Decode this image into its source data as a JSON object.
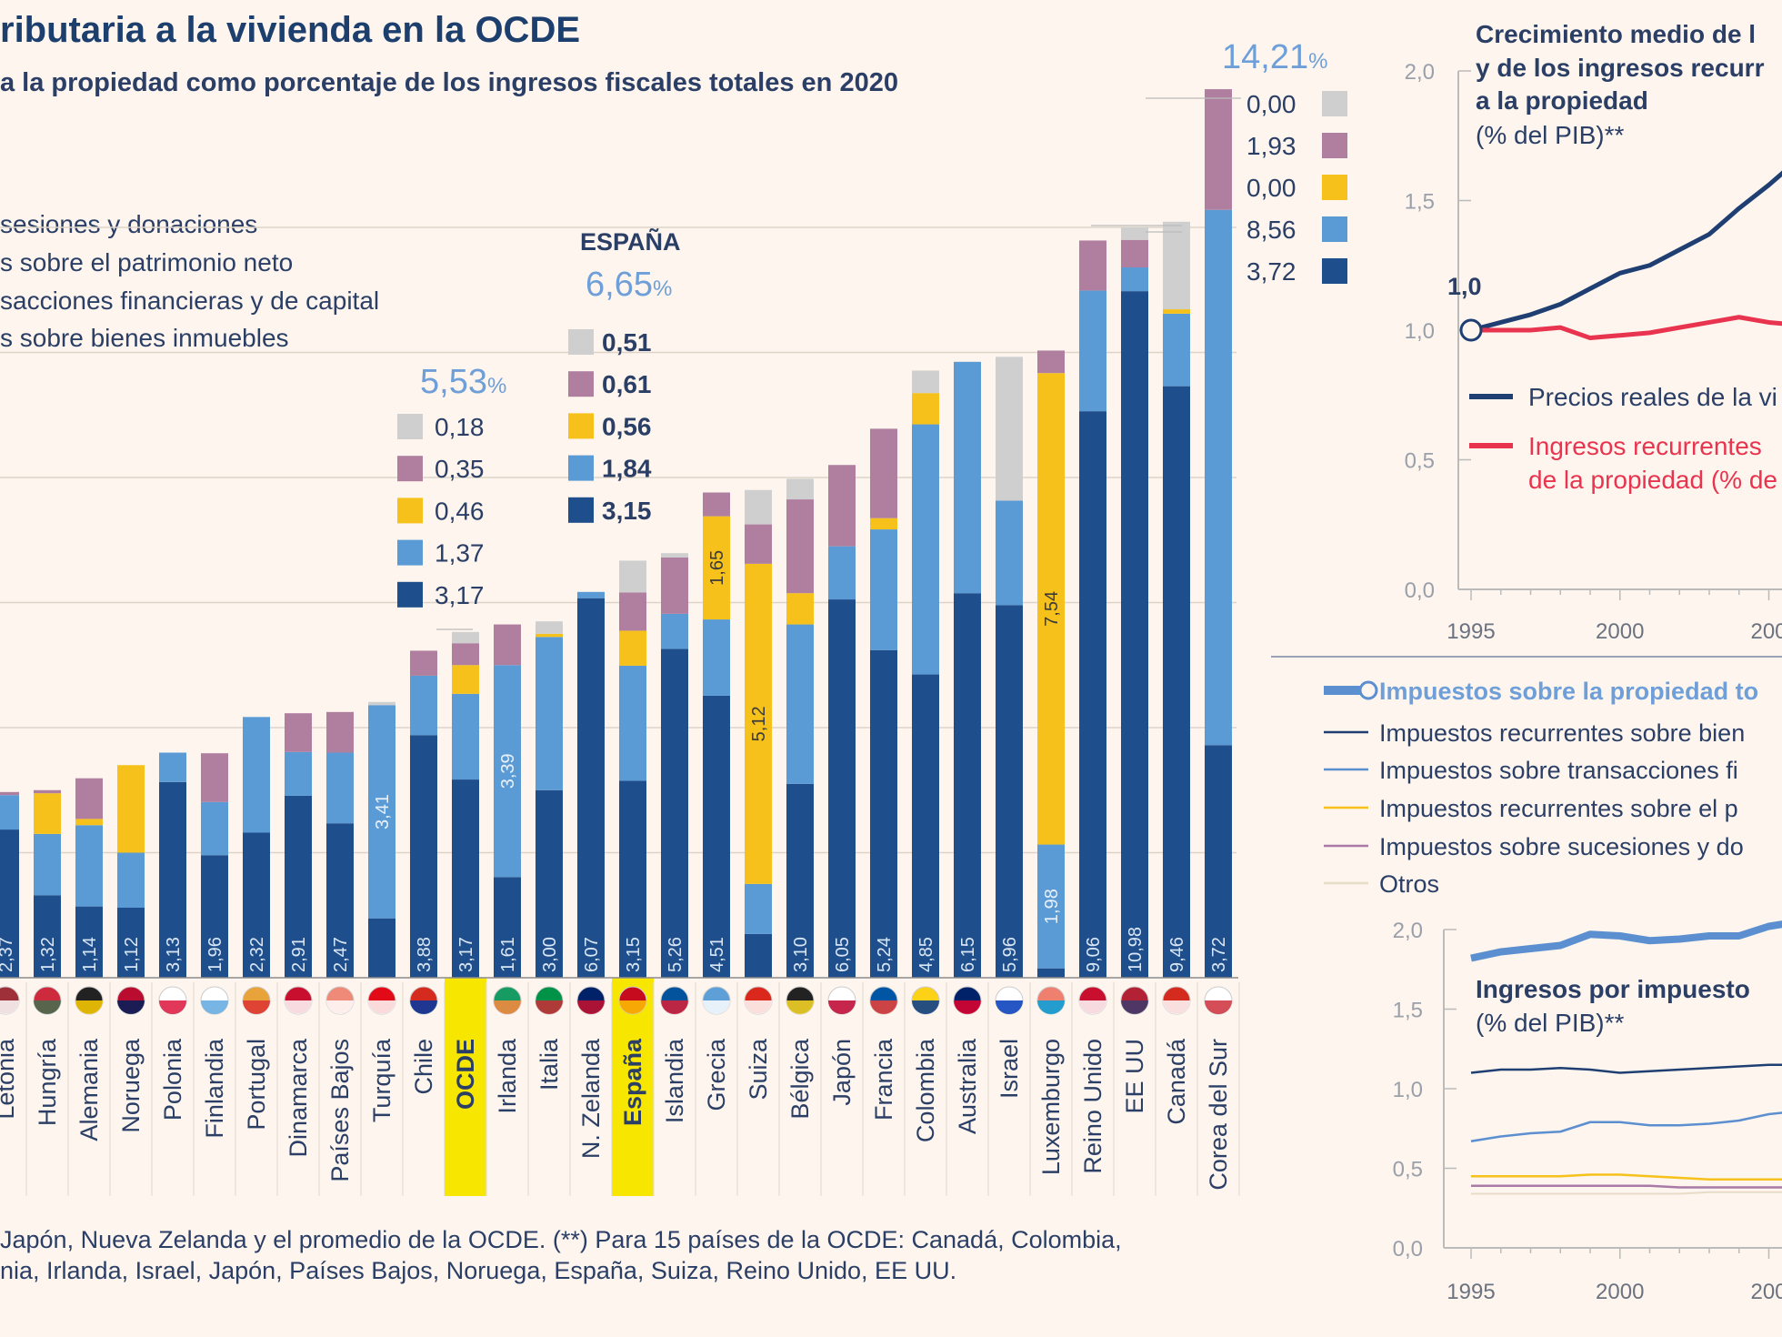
{
  "header": {
    "title": "ributaria a la vivienda en la OCDE",
    "subtitle": "a la propiedad como porcentaje de los ingresos fiscales totales en 2020"
  },
  "legend": [
    "sesiones y donaciones",
    "s sobre el patrimonio neto",
    "sacciones financieras y de capital",
    "s sobre bienes inmuebles"
  ],
  "colors": {
    "background": "#fdf5ee",
    "inmuebles": "#1f4e8c",
    "transacciones": "#5b9bd5",
    "patrimonio": "#f5c11a",
    "sucesiones": "#b07fa0",
    "otros": "#cfcfcf",
    "highlight": "#f7e600",
    "precios": "#1f3f73",
    "ingresos": "#e8344e",
    "text": "#2b3f66"
  },
  "chart_data": [
    {
      "type": "bar",
      "stacked": true,
      "title": "ributaria a la vivienda en la OCDE",
      "subtitle": "a la propiedad como porcentaje de los ingresos fiscales totales en 2020",
      "series_order": [
        "inmuebles",
        "transacciones",
        "patrimonio",
        "sucesiones",
        "otros"
      ],
      "ylim": [
        0,
        14.5
      ],
      "grid": true,
      "categories": [
        {
          "name": "Letonia",
          "values": [
            2.37,
            0.55,
            0,
            0.05,
            0
          ],
          "label": "2,37",
          "label_segment": 0,
          "flag": [
            "#9e3039",
            "#ffffff"
          ]
        },
        {
          "name": "Hungría",
          "values": [
            1.32,
            0.98,
            0.65,
            0.05,
            0
          ],
          "label": "1,32",
          "label_segment": 0,
          "flag": [
            "#cd2a3e",
            "#436f4d"
          ]
        },
        {
          "name": "Alemania",
          "values": [
            1.14,
            1.3,
            0.1,
            0.65,
            0
          ],
          "label": "1,14",
          "label_segment": 0,
          "flag": [
            "#222222",
            "#ffce00"
          ]
        },
        {
          "name": "Noruega",
          "values": [
            1.12,
            0.88,
            1.4,
            0,
            0
          ],
          "label": "1,12",
          "label_segment": 0,
          "flag": [
            "#ba0c2f",
            "#00205b"
          ]
        },
        {
          "name": "Polonia",
          "values": [
            3.13,
            0.47,
            0,
            0,
            0
          ],
          "label": "3,13",
          "label_segment": 0,
          "flag": [
            "#ffffff",
            "#dc143c"
          ]
        },
        {
          "name": "Finlandia",
          "values": [
            1.96,
            0.85,
            0,
            0.78,
            0
          ],
          "label": "1,96",
          "label_segment": 0,
          "flag": [
            "#ffffff",
            "#5fa8e0"
          ]
        },
        {
          "name": "Portugal",
          "values": [
            2.32,
            1.85,
            0,
            0,
            0
          ],
          "label": "2,32",
          "label_segment": 0,
          "flag": [
            "#e8a33a",
            "#d33"
          ]
        },
        {
          "name": "Dinamarca",
          "values": [
            2.91,
            0.7,
            0,
            0.62,
            0
          ],
          "label": "2,91",
          "label_segment": 0,
          "flag": [
            "#c8102e",
            "#ffffff"
          ]
        },
        {
          "name": "Países Bajos",
          "values": [
            2.47,
            1.13,
            0,
            0.65,
            0
          ],
          "label": "2,47",
          "label_segment": 0,
          "flag": [
            "#f08a78",
            "#ffffff"
          ]
        },
        {
          "name": "Turquía",
          "values": [
            0.95,
            3.41,
            0,
            0,
            0.05
          ],
          "label": "3,41",
          "label_segment": 1,
          "flag": [
            "#e30a17",
            "#ffffff"
          ]
        },
        {
          "name": "Chile",
          "values": [
            3.88,
            0.95,
            0,
            0.4,
            0
          ],
          "label": "3,88",
          "label_segment": 0,
          "flag": [
            "#d52b1e",
            "#0039a6"
          ]
        },
        {
          "name": "OCDE",
          "values": [
            3.17,
            1.37,
            0.46,
            0.35,
            0.18
          ],
          "label": "3,17",
          "label_segment": 0,
          "highlight": true
        },
        {
          "name": "Irlanda",
          "values": [
            1.61,
            3.39,
            0,
            0.65,
            0
          ],
          "label": "3,39",
          "label2": "1,61",
          "label_segment": 1,
          "flag": [
            "#169b62",
            "#ff883e"
          ]
        },
        {
          "name": "Italia",
          "values": [
            3.0,
            2.45,
            0.05,
            0,
            0.2
          ],
          "label": "3,00",
          "label_segment": 0,
          "flag": [
            "#009246",
            "#ce2b37"
          ]
        },
        {
          "name": "N. Zelanda",
          "values": [
            6.07,
            0.1,
            0,
            0,
            0
          ],
          "label": "6,07",
          "label_segment": 0,
          "flag": [
            "#012169",
            "#c8102e"
          ]
        },
        {
          "name": "España",
          "values": [
            3.15,
            1.84,
            0.56,
            0.61,
            0.51
          ],
          "label": "3,15",
          "label_segment": 0,
          "highlight": true,
          "flag": [
            "#c60b1e",
            "#ffc400"
          ]
        },
        {
          "name": "Islandia",
          "values": [
            5.26,
            0.56,
            0,
            0.9,
            0.07
          ],
          "label": "5,26",
          "label_segment": 0,
          "flag": [
            "#02529c",
            "#dc1e35"
          ]
        },
        {
          "name": "Grecia",
          "values": [
            4.51,
            1.22,
            1.65,
            0.38,
            0
          ],
          "label": "4,51",
          "label2": "1,65",
          "label_segment": 0,
          "flag": [
            "#5f9fd8",
            "#ffffff"
          ]
        },
        {
          "name": "Suiza",
          "values": [
            0.7,
            0.8,
            5.12,
            0.63,
            0.55
          ],
          "label": "5,12",
          "label_segment": 2,
          "flag": [
            "#da291c",
            "#ffffff"
          ]
        },
        {
          "name": "Bélgica",
          "values": [
            3.1,
            2.55,
            0.5,
            1.5,
            0.33
          ],
          "label": "3,10",
          "label_segment": 0,
          "flag": [
            "#222222",
            "#fdda24"
          ]
        },
        {
          "name": "Japón",
          "values": [
            6.05,
            0.85,
            0,
            1.3,
            0
          ],
          "label": "6,05",
          "label_segment": 0,
          "flag": [
            "#ffffff",
            "#bc002d"
          ]
        },
        {
          "name": "Francia",
          "values": [
            5.24,
            1.93,
            0.18,
            1.43,
            0
          ],
          "label": "5,24",
          "label_segment": 0,
          "flag": [
            "#0055a4",
            "#ef4135"
          ]
        },
        {
          "name": "Colombia",
          "values": [
            4.85,
            4.0,
            0.5,
            0,
            0.36
          ],
          "label": "4,85",
          "label_segment": 0,
          "flag": [
            "#fcd116",
            "#003893"
          ]
        },
        {
          "name": "Australia",
          "values": [
            6.15,
            3.7,
            0,
            0,
            0
          ],
          "label": "6,15",
          "label_segment": 0,
          "flag": [
            "#012169",
            "#e4002b"
          ]
        },
        {
          "name": "Israel",
          "values": [
            5.96,
            1.67,
            0,
            0,
            2.3
          ],
          "label": "5,96",
          "label_segment": 0,
          "flag": [
            "#ffffff",
            "#0038b8"
          ]
        },
        {
          "name": "Luxemburgo",
          "values": [
            0.15,
            1.98,
            7.54,
            0.36,
            0
          ],
          "label": "7,54",
          "label2": "1,98",
          "label_segment": 2,
          "flag": [
            "#ef8070",
            "#00a1de"
          ]
        },
        {
          "name": "Reino Unido",
          "values": [
            9.06,
            1.93,
            0,
            0.8,
            0
          ],
          "label": "9,06",
          "label_segment": 0,
          "flag": [
            "#c8102e",
            "#ffffff"
          ]
        },
        {
          "name": "EE UU",
          "values": [
            10.98,
            0.38,
            0,
            0.44,
            0.2
          ],
          "label": "10,98",
          "label_segment": 0,
          "flag": [
            "#b22234",
            "#3c3b6e"
          ]
        },
        {
          "name": "Canadá",
          "values": [
            9.46,
            1.16,
            0.07,
            0,
            1.4
          ],
          "label": "9,46",
          "label_segment": 0,
          "flag": [
            "#d52b1e",
            "#ffffff"
          ]
        },
        {
          "name": "Corea del Sur",
          "values": [
            3.72,
            8.56,
            0,
            1.93,
            0
          ],
          "label": "3,72",
          "label_segment": 0,
          "flag": [
            "#ffffff",
            "#cd2e3a"
          ]
        }
      ]
    },
    {
      "type": "line",
      "title": [
        "Crecimiento medio de l",
        "y de los ingresos recurr",
        "a la propiedad",
        "(% del PIB)**"
      ],
      "ylim": [
        0,
        2.0
      ],
      "yticks": [
        "0,0",
        "0,5",
        "1,0",
        "1,5",
        "2,0"
      ],
      "xticks": [
        "1995",
        "2000",
        "200"
      ],
      "start_label": "1,0",
      "x": [
        1995,
        1996,
        1997,
        1998,
        1999,
        2000,
        2001,
        2002,
        2003,
        2004,
        2005,
        2006
      ],
      "series": [
        {
          "name": "Precios reales de la vi",
          "color": "#1f3f73",
          "values": [
            1.0,
            1.03,
            1.06,
            1.1,
            1.16,
            1.22,
            1.25,
            1.31,
            1.37,
            1.47,
            1.56,
            1.66
          ]
        },
        {
          "name": "Ingresos recurrentes",
          "name2": "de la propiedad (% de",
          "color": "#e8344e",
          "values": [
            1.0,
            1.0,
            1.0,
            1.01,
            0.97,
            0.98,
            0.99,
            1.01,
            1.03,
            1.05,
            1.03,
            1.02
          ]
        }
      ]
    },
    {
      "type": "line",
      "title": [
        "Ingresos por impuesto",
        "(% del PIB)**"
      ],
      "ylim": [
        0,
        2.0
      ],
      "yticks": [
        "0,0",
        "0,5",
        "1,0",
        "1,5",
        "2,0"
      ],
      "xticks": [
        "1995",
        "2000",
        "200"
      ],
      "x": [
        1995,
        1996,
        1997,
        1998,
        1999,
        2000,
        2001,
        2002,
        2003,
        2004,
        2005,
        2006
      ],
      "series": [
        {
          "name": "Impuestos sobre la propiedad to",
          "color": "#5b8fd0",
          "width": 8,
          "values": [
            1.82,
            1.86,
            1.88,
            1.9,
            1.97,
            1.96,
            1.93,
            1.94,
            1.96,
            1.96,
            2.02,
            2.05
          ]
        },
        {
          "name": "Impuestos recurrentes sobre bien",
          "color": "#1f3f73",
          "width": 2.5,
          "values": [
            1.1,
            1.12,
            1.12,
            1.13,
            1.12,
            1.1,
            1.11,
            1.12,
            1.13,
            1.14,
            1.15,
            1.15
          ]
        },
        {
          "name": "Impuestos sobre transacciones fi",
          "color": "#5b8fd0",
          "width": 2.5,
          "values": [
            0.67,
            0.7,
            0.72,
            0.73,
            0.79,
            0.79,
            0.77,
            0.77,
            0.78,
            0.8,
            0.84,
            0.86
          ]
        },
        {
          "name": "Impuestos recurrentes sobre el p",
          "color": "#f5c11a",
          "width": 2.5,
          "values": [
            0.45,
            0.45,
            0.45,
            0.45,
            0.46,
            0.46,
            0.45,
            0.44,
            0.43,
            0.43,
            0.43,
            0.43
          ]
        },
        {
          "name": "Impuestos sobre sucesiones y do",
          "color": "#a97aa6",
          "width": 2.5,
          "values": [
            0.39,
            0.39,
            0.39,
            0.39,
            0.39,
            0.39,
            0.39,
            0.38,
            0.38,
            0.38,
            0.38,
            0.38
          ]
        },
        {
          "name": "Otros",
          "color": "#e6dcc8",
          "width": 2,
          "values": [
            0.34,
            0.34,
            0.34,
            0.34,
            0.34,
            0.34,
            0.34,
            0.34,
            0.35,
            0.35,
            0.35,
            0.35
          ]
        }
      ]
    }
  ],
  "callouts": {
    "ocde": {
      "total": "5,53",
      "pct": "%",
      "values": [
        "0,18",
        "0,35",
        "0,46",
        "1,37",
        "3,17"
      ]
    },
    "espana": {
      "heading": "ESPAÑA",
      "total": "6,65",
      "pct": "%",
      "values": [
        "0,51",
        "0,61",
        "0,56",
        "1,84",
        "3,15"
      ]
    },
    "corea": {
      "total": "14,21",
      "pct": "%",
      "values": [
        "0,00",
        "1,93",
        "0,00",
        "8,56",
        "3,72"
      ]
    }
  },
  "footnote": [
    "Japón, Nueva Zelanda y el promedio de la OCDE. (**) Para 15 países de la OCDE: Canadá, Colombia,",
    "nia, Irlanda, Israel, Japón, Países Bajos, Noruega, España, Suiza, Reino Unido, EE UU."
  ]
}
